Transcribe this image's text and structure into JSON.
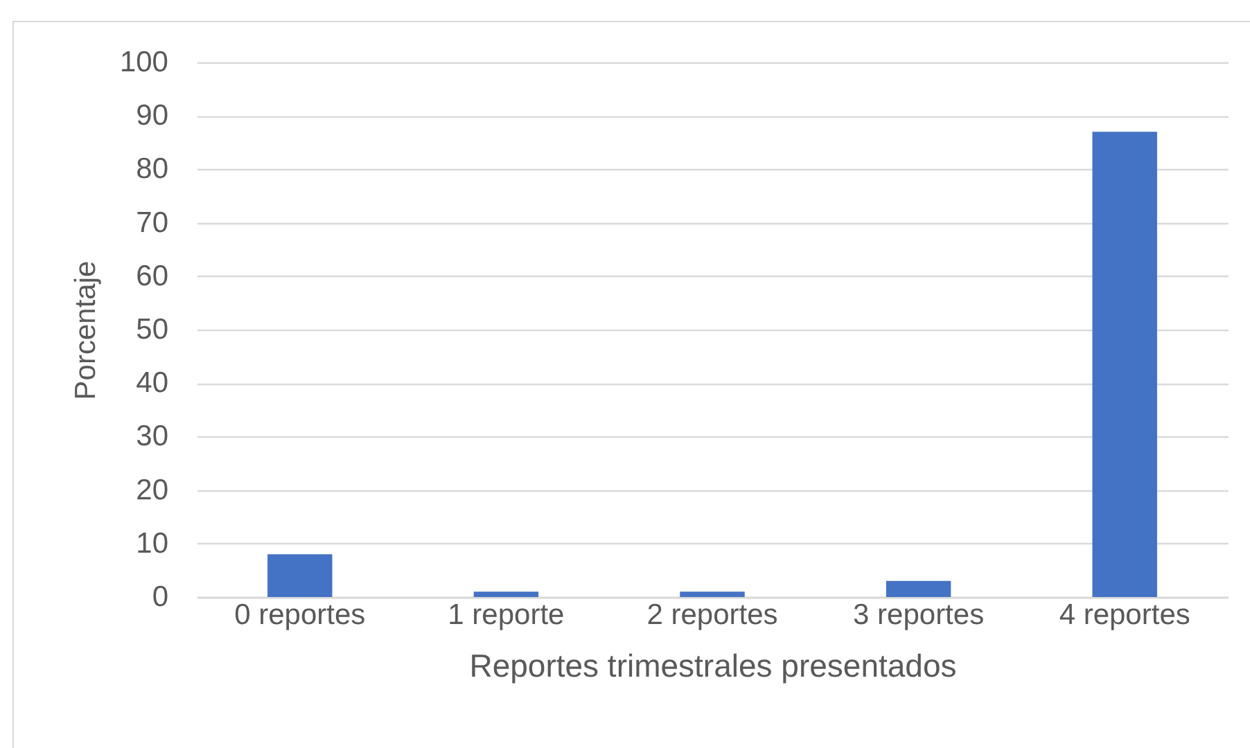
{
  "chart_data": {
    "type": "bar",
    "xlabel": "Reportes trimestrales presentados",
    "ylabel": "Porcentaje",
    "categories": [
      "0 reportes",
      "1 reporte",
      "2 reportes",
      "3 reportes",
      "4 reportes"
    ],
    "values": [
      8,
      1,
      1,
      3,
      87
    ],
    "color": "#4472c4",
    "ylim": [
      0,
      100
    ],
    "yticks": [
      0,
      10,
      20,
      30,
      40,
      50,
      60,
      70,
      80,
      90,
      100
    ],
    "grid": "y"
  }
}
